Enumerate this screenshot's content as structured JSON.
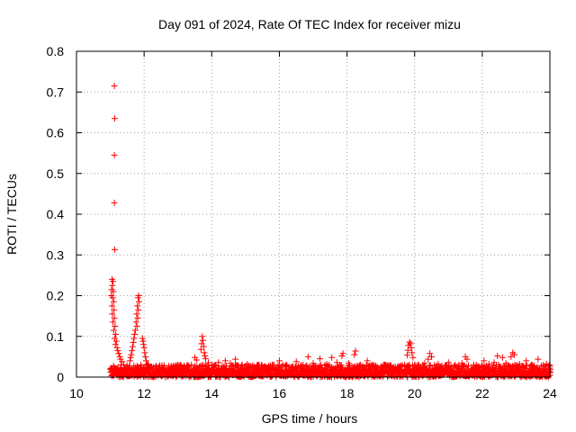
{
  "chart_data": {
    "type": "scatter",
    "title": "Day 091 of 2024, Rate Of TEC Index for receiver mizu",
    "xlabel": "GPS time / hours",
    "ylabel": "ROTI / TECUs",
    "xlim": [
      10,
      24
    ],
    "ylim": [
      0,
      0.8
    ],
    "grid": true,
    "marker": "+",
    "color": "#ff0000",
    "x_ticks": [
      "10",
      "12",
      "14",
      "16",
      "18",
      "20",
      "22",
      "24"
    ],
    "y_ticks": [
      "0",
      "0.1",
      "0.2",
      "0.3",
      "0.4",
      "0.5",
      "0.6",
      "0.7",
      "0.8"
    ],
    "series": [
      {
        "name": "ROTI",
        "points": [
          [
            11.12,
            0.715
          ],
          [
            11.13,
            0.635
          ],
          [
            11.12,
            0.545
          ],
          [
            11.12,
            0.428
          ],
          [
            11.13,
            0.313
          ],
          [
            11.05,
            0.24
          ],
          [
            11.08,
            0.235
          ],
          [
            11.06,
            0.225
          ],
          [
            11.04,
            0.215
          ],
          [
            11.09,
            0.21
          ],
          [
            11.03,
            0.2
          ],
          [
            11.07,
            0.195
          ],
          [
            11.1,
            0.185
          ],
          [
            11.05,
            0.175
          ],
          [
            11.11,
            0.165
          ],
          [
            11.06,
            0.155
          ],
          [
            11.12,
            0.145
          ],
          [
            11.08,
            0.135
          ],
          [
            11.14,
            0.125
          ],
          [
            11.1,
            0.115
          ],
          [
            11.16,
            0.105
          ],
          [
            11.13,
            0.095
          ],
          [
            11.18,
            0.088
          ],
          [
            11.15,
            0.08
          ],
          [
            11.2,
            0.072
          ],
          [
            11.22,
            0.065
          ],
          [
            11.25,
            0.058
          ],
          [
            11.28,
            0.05
          ],
          [
            11.3,
            0.044
          ],
          [
            11.35,
            0.038
          ],
          [
            11.84,
            0.2
          ],
          [
            11.82,
            0.195
          ],
          [
            11.85,
            0.185
          ],
          [
            11.8,
            0.175
          ],
          [
            11.83,
            0.165
          ],
          [
            11.78,
            0.155
          ],
          [
            11.81,
            0.145
          ],
          [
            11.76,
            0.135
          ],
          [
            11.79,
            0.125
          ],
          [
            11.74,
            0.115
          ],
          [
            11.72,
            0.105
          ],
          [
            11.7,
            0.095
          ],
          [
            11.68,
            0.085
          ],
          [
            11.66,
            0.075
          ],
          [
            11.64,
            0.065
          ],
          [
            11.62,
            0.055
          ],
          [
            11.6,
            0.048
          ],
          [
            11.58,
            0.04
          ],
          [
            11.95,
            0.095
          ],
          [
            11.97,
            0.088
          ],
          [
            11.98,
            0.08
          ],
          [
            12.0,
            0.072
          ],
          [
            12.02,
            0.06
          ],
          [
            12.04,
            0.05
          ],
          [
            12.06,
            0.04
          ],
          [
            12.1,
            0.032
          ],
          [
            13.72,
            0.1
          ],
          [
            13.74,
            0.09
          ],
          [
            13.7,
            0.082
          ],
          [
            13.76,
            0.075
          ],
          [
            13.68,
            0.068
          ],
          [
            13.78,
            0.06
          ],
          [
            13.8,
            0.052
          ],
          [
            13.82,
            0.045
          ],
          [
            13.5,
            0.048
          ],
          [
            13.55,
            0.042
          ],
          [
            14.4,
            0.04
          ],
          [
            14.7,
            0.044
          ],
          [
            15.05,
            0.032
          ],
          [
            15.4,
            0.03
          ],
          [
            16.0,
            0.04
          ],
          [
            16.5,
            0.038
          ],
          [
            16.85,
            0.05
          ],
          [
            17.2,
            0.045
          ],
          [
            17.55,
            0.048
          ],
          [
            17.88,
            0.058
          ],
          [
            17.85,
            0.052
          ],
          [
            18.25,
            0.064
          ],
          [
            18.22,
            0.055
          ],
          [
            18.6,
            0.04
          ],
          [
            19.1,
            0.03
          ],
          [
            19.85,
            0.086
          ],
          [
            19.88,
            0.082
          ],
          [
            19.82,
            0.078
          ],
          [
            19.9,
            0.072
          ],
          [
            19.8,
            0.066
          ],
          [
            19.92,
            0.06
          ],
          [
            19.78,
            0.054
          ],
          [
            19.95,
            0.048
          ],
          [
            20.45,
            0.058
          ],
          [
            20.5,
            0.05
          ],
          [
            20.4,
            0.044
          ],
          [
            21.0,
            0.036
          ],
          [
            21.5,
            0.05
          ],
          [
            21.55,
            0.044
          ],
          [
            22.05,
            0.04
          ],
          [
            22.45,
            0.052
          ],
          [
            22.6,
            0.048
          ],
          [
            22.9,
            0.06
          ],
          [
            22.95,
            0.055
          ],
          [
            22.85,
            0.05
          ],
          [
            23.3,
            0.04
          ],
          [
            23.65,
            0.044
          ],
          [
            23.9,
            0.032
          ],
          [
            11.0,
            0.02
          ],
          [
            11.4,
            0.03
          ],
          [
            11.5,
            0.025
          ],
          [
            11.9,
            0.03
          ],
          [
            12.2,
            0.025
          ],
          [
            12.4,
            0.02
          ],
          [
            12.6,
            0.022
          ],
          [
            12.8,
            0.018
          ],
          [
            13.0,
            0.02
          ],
          [
            13.2,
            0.024
          ],
          [
            13.4,
            0.03
          ],
          [
            13.9,
            0.035
          ],
          [
            14.1,
            0.03
          ],
          [
            14.2,
            0.036
          ],
          [
            14.55,
            0.034
          ],
          [
            14.9,
            0.03
          ],
          [
            15.2,
            0.026
          ],
          [
            15.6,
            0.024
          ],
          [
            15.8,
            0.03
          ],
          [
            16.2,
            0.03
          ],
          [
            16.4,
            0.026
          ],
          [
            16.7,
            0.03
          ],
          [
            17.0,
            0.034
          ],
          [
            17.4,
            0.032
          ],
          [
            17.7,
            0.036
          ],
          [
            18.05,
            0.034
          ],
          [
            18.4,
            0.03
          ],
          [
            18.8,
            0.026
          ],
          [
            19.0,
            0.024
          ],
          [
            19.3,
            0.028
          ],
          [
            19.55,
            0.026
          ],
          [
            19.7,
            0.03
          ],
          [
            20.1,
            0.03
          ],
          [
            20.3,
            0.034
          ],
          [
            20.7,
            0.032
          ],
          [
            20.9,
            0.028
          ],
          [
            21.2,
            0.03
          ],
          [
            21.4,
            0.034
          ],
          [
            21.75,
            0.03
          ],
          [
            21.9,
            0.026
          ],
          [
            22.2,
            0.032
          ],
          [
            22.35,
            0.036
          ],
          [
            22.7,
            0.034
          ],
          [
            23.1,
            0.032
          ],
          [
            23.45,
            0.03
          ],
          [
            23.75,
            0.028
          ],
          [
            24.0,
            0.022
          ],
          [
            23.95,
            0.015
          ]
        ],
        "dense_band": {
          "x_start": 11.0,
          "x_end": 24.0,
          "y_min": 0.0,
          "y_max": 0.03
        }
      }
    ]
  }
}
